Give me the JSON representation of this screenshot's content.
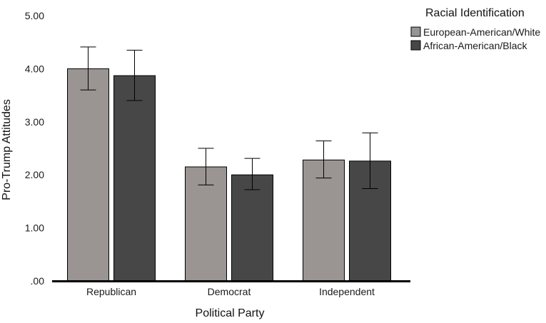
{
  "chart_data": {
    "type": "bar",
    "categories": [
      "Republican",
      "Democrat",
      "Independent"
    ],
    "series": [
      {
        "name": "European-American/White",
        "values": [
          4.0,
          2.15,
          2.28
        ],
        "error_low": [
          3.6,
          1.81,
          1.94
        ],
        "error_high": [
          4.41,
          2.5,
          2.64
        ]
      },
      {
        "name": "African-American/Black",
        "values": [
          3.87,
          2.0,
          2.26
        ],
        "error_low": [
          3.4,
          1.72,
          1.74
        ],
        "error_high": [
          4.35,
          2.31,
          2.79
        ]
      }
    ],
    "xlabel": "Political Party",
    "ylabel": "Pro-Trump Attitudes",
    "ylim": [
      0,
      5
    ],
    "yticks": [
      ".00",
      "1.00",
      "2.00",
      "3.00",
      "4.00",
      "5.00"
    ],
    "legend_title": "Racial Identification",
    "legend_position": "top-right",
    "grid": false,
    "colors": [
      "#9a9593",
      "#474747"
    ]
  }
}
